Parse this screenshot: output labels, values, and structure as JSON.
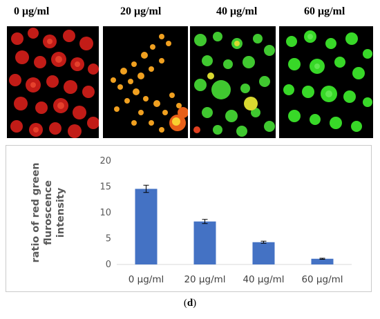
{
  "panels": [
    {
      "label": "0 μg/ml",
      "stain": "red"
    },
    {
      "label": "20 μg/ml",
      "stain": "orange"
    },
    {
      "label": "40 μg/ml",
      "stain": "green-yellow"
    },
    {
      "label": "60 μg/ml",
      "stain": "green"
    }
  ],
  "colors": {
    "bar": "#4472c4",
    "red_stain": "#e8261a",
    "orange_stain": "#f4a21a",
    "green_stain": "#3ed62a",
    "background": "#000000"
  },
  "chart_data": {
    "type": "bar",
    "categories": [
      "0 μg/ml",
      "20 μg/ml",
      "40 μg/ml",
      "60 μg/ml"
    ],
    "values": [
      14.6,
      8.3,
      4.3,
      1.1
    ],
    "errors": [
      0.7,
      0.4,
      0.2,
      0.1
    ],
    "ylabel_lines": [
      "ratio of red green",
      "fluroscence",
      "intensity"
    ],
    "ylim": [
      0,
      20
    ],
    "yticks": [
      0,
      5,
      10,
      15,
      20
    ],
    "grid": false
  },
  "caption": {
    "open": "(",
    "letter": "d",
    "close": ")"
  }
}
